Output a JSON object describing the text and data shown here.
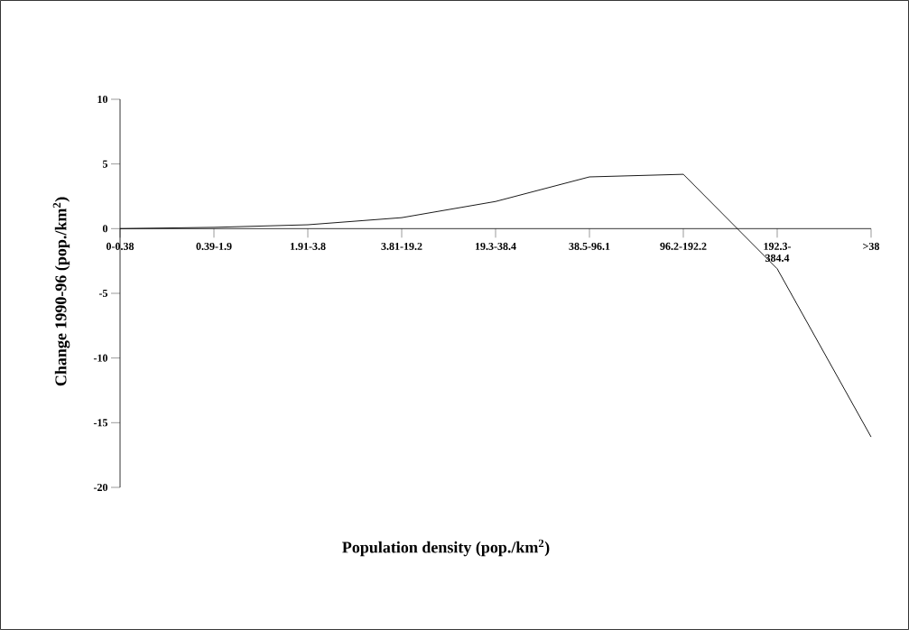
{
  "chart_data": {
    "type": "line",
    "xlabel": "Population density (pop./km$^{2}$)",
    "ylabel": "Change 1990-96 (pop./km$^{2}$)",
    "categories": [
      "0-0.38",
      "0.39-1.9",
      "1.91-3.8",
      "3.81-19.2",
      "19.3-38.4",
      "38.5-96.1",
      "96.2-192.2",
      "192.3-384.4",
      ">38"
    ],
    "series": [
      {
        "color": "#000000",
        "values": [
          0,
          0.1,
          0.3,
          0.85,
          2.1,
          4.0,
          4.2,
          -3.1,
          -16.1
        ]
      }
    ],
    "ylim": [
      -20,
      10
    ],
    "yticks": [
      -20,
      -15,
      -10,
      -5,
      0,
      5,
      10
    ],
    "marker": "none",
    "line_style": "solid"
  }
}
